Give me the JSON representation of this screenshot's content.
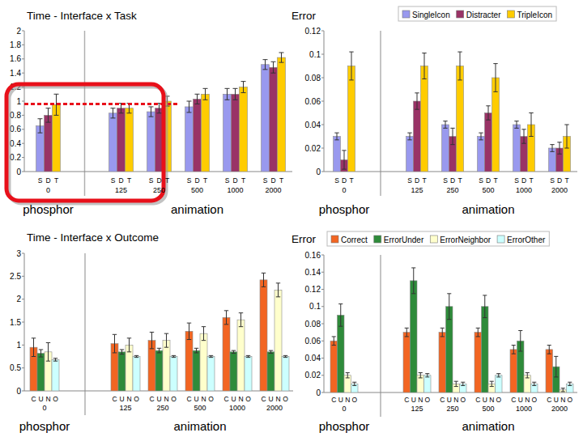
{
  "chart_data": [
    {
      "type": "bar",
      "title": "Time - Interface x Task",
      "categories": [
        "0",
        "125",
        "250",
        "500",
        "1000",
        "2000"
      ],
      "x_groups": [
        "phosphor",
        "animation",
        "animation",
        "animation",
        "animation",
        "animation"
      ],
      "bar_labels": [
        "S",
        "D",
        "T"
      ],
      "series": [
        {
          "color": "#9999ee",
          "values": [
            0.65,
            0.83,
            0.85,
            0.92,
            1.1,
            1.52
          ],
          "errors": [
            0.1,
            0.07,
            0.07,
            0.08,
            0.08,
            0.07
          ]
        },
        {
          "color": "#993366",
          "values": [
            0.8,
            0.9,
            0.9,
            1.03,
            1.1,
            1.48
          ],
          "errors": [
            0.1,
            0.07,
            0.07,
            0.07,
            0.08,
            0.08
          ]
        },
        {
          "color": "#ffcc00",
          "values": [
            0.95,
            0.9,
            1.0,
            1.1,
            1.2,
            1.62
          ],
          "errors": [
            0.15,
            0.07,
            0.07,
            0.08,
            0.08,
            0.07
          ]
        }
      ],
      "ylim": [
        0,
        2
      ],
      "yticks": [
        0,
        0.2,
        0.4,
        0.6,
        0.8,
        1,
        1.2,
        1.4,
        1.6,
        1.8,
        2
      ],
      "grid": false,
      "reference_line": 0.96
    },
    {
      "type": "bar",
      "title": "Error",
      "categories": [
        "0",
        "125",
        "250",
        "500",
        "1000",
        "2000"
      ],
      "x_groups": [
        "phosphor",
        "animation",
        "animation",
        "animation",
        "animation",
        "animation"
      ],
      "bar_labels": [
        "S",
        "D",
        "T"
      ],
      "series": [
        {
          "name": "SingleIcon",
          "color": "#9999ee",
          "values": [
            0.03,
            0.03,
            0.04,
            0.03,
            0.04,
            0.02
          ],
          "errors": [
            0.003,
            0.003,
            0.003,
            0.003,
            0.003,
            0.003
          ]
        },
        {
          "name": "Distracter",
          "color": "#993366",
          "values": [
            0.01,
            0.06,
            0.03,
            0.05,
            0.03,
            0.02
          ],
          "errors": [
            0.008,
            0.007,
            0.007,
            0.006,
            0.006,
            0.005
          ]
        },
        {
          "name": "TripleIcon",
          "color": "#ffcc00",
          "values": [
            0.09,
            0.09,
            0.09,
            0.08,
            0.04,
            0.03
          ],
          "errors": [
            0.012,
            0.011,
            0.012,
            0.012,
            0.01,
            0.01
          ]
        }
      ],
      "ylim": [
        0,
        0.12
      ],
      "yticks": [
        0,
        0.02,
        0.04,
        0.06,
        0.08,
        0.1,
        0.12
      ],
      "grid": false,
      "legend": "top"
    },
    {
      "type": "bar",
      "title": "Time - Interface x Outcome",
      "categories": [
        "0",
        "125",
        "250",
        "500",
        "1000",
        "2000"
      ],
      "x_groups": [
        "phosphor",
        "animation",
        "animation",
        "animation",
        "animation",
        "animation"
      ],
      "bar_labels": [
        "C",
        "U",
        "N",
        "O"
      ],
      "series": [
        {
          "color": "#f26522",
          "values": [
            0.95,
            1.03,
            1.1,
            1.3,
            1.6,
            2.42
          ],
          "errors": [
            0.2,
            0.2,
            0.18,
            0.18,
            0.15,
            0.15
          ]
        },
        {
          "color": "#2e8b3a",
          "values": [
            0.82,
            0.85,
            0.88,
            0.88,
            0.85,
            0.85
          ],
          "errors": [
            0.08,
            0.05,
            0.05,
            0.05,
            0.03,
            0.03
          ]
        },
        {
          "color": "#ffffcc",
          "values": [
            0.85,
            1.0,
            1.1,
            1.25,
            1.55,
            2.2
          ],
          "errors": [
            0.2,
            0.15,
            0.15,
            0.15,
            0.15,
            0.15
          ]
        },
        {
          "color": "#ccffff",
          "values": [
            0.68,
            0.75,
            0.75,
            0.75,
            0.75,
            0.75
          ],
          "errors": [
            0.03,
            0.02,
            0.02,
            0.02,
            0.02,
            0.02
          ]
        }
      ],
      "ylim": [
        0,
        3
      ],
      "yticks": [
        0,
        0.5,
        1,
        1.5,
        2,
        2.5,
        3
      ],
      "grid": false
    },
    {
      "type": "bar",
      "title": "Error",
      "categories": [
        "0",
        "125",
        "250",
        "500",
        "1000",
        "2000"
      ],
      "x_groups": [
        "phosphor",
        "animation",
        "animation",
        "animation",
        "animation",
        "animation"
      ],
      "bar_labels": [
        "C",
        "U",
        "N",
        "O"
      ],
      "series": [
        {
          "name": "Correct",
          "color": "#f26522",
          "values": [
            0.06,
            0.07,
            0.07,
            0.07,
            0.05,
            0.05
          ],
          "errors": [
            0.005,
            0.005,
            0.005,
            0.005,
            0.005,
            0.005
          ]
        },
        {
          "name": "ErrorUnder",
          "color": "#2e8b3a",
          "values": [
            0.09,
            0.13,
            0.1,
            0.1,
            0.06,
            0.03
          ],
          "errors": [
            0.013,
            0.015,
            0.015,
            0.013,
            0.012,
            0.012
          ]
        },
        {
          "name": "ErrorNeighbor",
          "color": "#ffffcc",
          "values": [
            0.02,
            0.02,
            0.01,
            0.01,
            0.02,
            0.003
          ],
          "errors": [
            0.003,
            0.003,
            0.003,
            0.003,
            0.003,
            0.002
          ]
        },
        {
          "name": "ErrorOther",
          "color": "#ccffff",
          "values": [
            0.01,
            0.02,
            0.01,
            0.02,
            0.01,
            0.01
          ],
          "errors": [
            0.002,
            0.002,
            0.002,
            0.002,
            0.002,
            0.002
          ]
        }
      ],
      "ylim": [
        0,
        0.16
      ],
      "yticks": [
        0,
        0.02,
        0.04,
        0.06,
        0.08,
        0.1,
        0.12,
        0.14,
        0.16
      ],
      "grid": false,
      "legend": "top"
    }
  ]
}
